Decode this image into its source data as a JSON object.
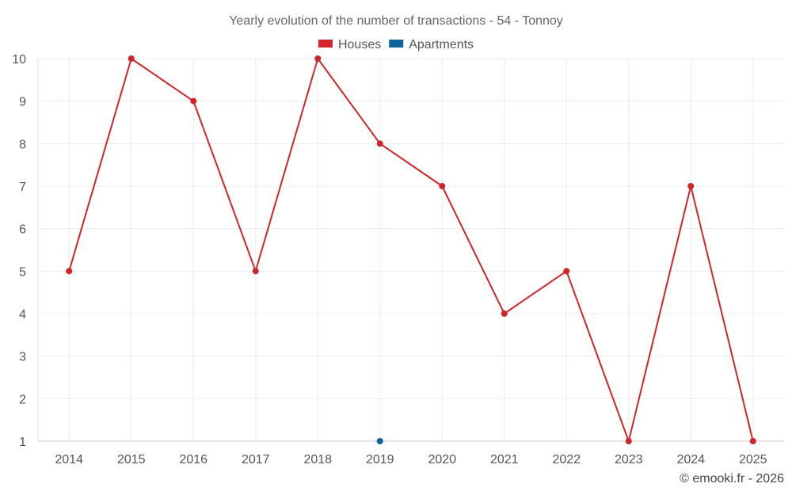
{
  "chart_data": {
    "type": "line",
    "title": "Yearly evolution of the number of transactions - 54 - Tonnoy",
    "categories": [
      "2014",
      "2015",
      "2016",
      "2017",
      "2018",
      "2019",
      "2020",
      "2021",
      "2022",
      "2023",
      "2024",
      "2025"
    ],
    "series": [
      {
        "name": "Houses",
        "color": "#d0262b",
        "values": [
          5,
          10,
          9,
          5,
          10,
          8,
          7,
          4,
          5,
          1,
          7,
          1
        ]
      },
      {
        "name": "Apartments",
        "color": "#0d6299",
        "values": [
          null,
          null,
          null,
          null,
          null,
          1,
          null,
          null,
          null,
          null,
          null,
          null
        ]
      }
    ],
    "yticks": [
      1,
      2,
      3,
      4,
      5,
      6,
      7,
      8,
      9,
      10
    ],
    "ylim": [
      1,
      10
    ],
    "xlabel": "",
    "ylabel": "",
    "grid": true,
    "legend_position": "top-center"
  },
  "credit": "© emooki.fr - 2026"
}
